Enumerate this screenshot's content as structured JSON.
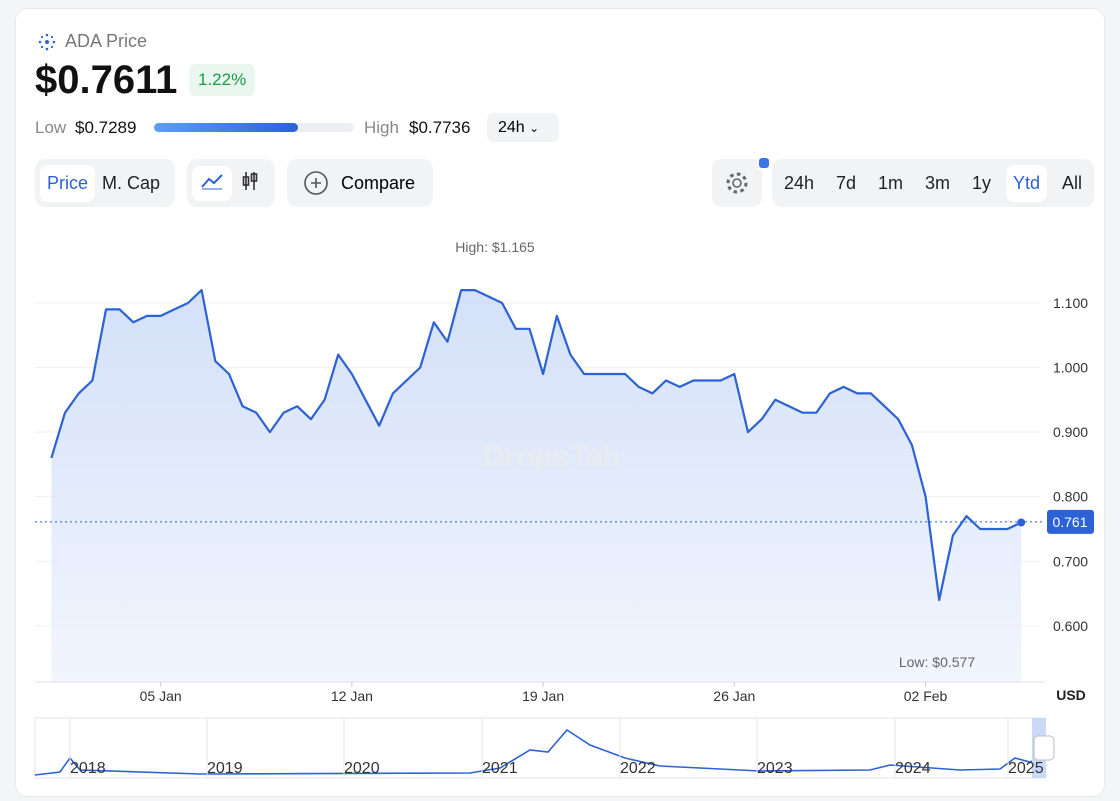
{
  "header": {
    "asset": "ADA Price",
    "price": "$0.7611",
    "change": "1.22%",
    "low_label": "Low",
    "low": "$0.7289",
    "high_label": "High",
    "high": "$0.7736",
    "range": "24h"
  },
  "toolbar": {
    "metrics": [
      "Price",
      "M. Cap"
    ],
    "compare": "Compare",
    "periods": [
      "24h",
      "7d",
      "1m",
      "3m",
      "1y",
      "Ytd",
      "All"
    ]
  },
  "chart_data": {
    "type": "line",
    "color": "#2c62d4",
    "values": [
      0.86,
      0.93,
      0.96,
      0.98,
      1.09,
      1.09,
      1.07,
      1.08,
      1.08,
      1.09,
      1.1,
      1.12,
      1.01,
      0.99,
      0.94,
      0.93,
      0.9,
      0.93,
      0.94,
      0.92,
      0.95,
      1.02,
      0.99,
      0.95,
      0.91,
      0.96,
      0.98,
      1.0,
      1.07,
      1.04,
      1.12,
      1.12,
      1.11,
      1.1,
      1.06,
      1.06,
      0.99,
      1.08,
      1.02,
      0.99,
      0.99,
      0.99,
      0.99,
      0.97,
      0.96,
      0.98,
      0.97,
      0.98,
      0.98,
      0.98,
      0.99,
      0.9,
      0.92,
      0.95,
      0.94,
      0.93,
      0.93,
      0.96,
      0.97,
      0.96,
      0.96,
      0.94,
      0.92,
      0.88,
      0.8,
      0.64,
      0.74,
      0.77,
      0.75,
      0.75,
      0.75,
      0.76
    ],
    "xlim": [
      -1.2,
      71.5
    ],
    "xticks": [
      {
        "value": 8,
        "label": "05 Jan"
      },
      {
        "value": 22,
        "label": "12 Jan"
      },
      {
        "value": 36,
        "label": "19 Jan"
      },
      {
        "value": 50,
        "label": "26 Jan"
      },
      {
        "value": 64,
        "label": "02 Feb"
      }
    ],
    "ylim": [
      0.513,
      1.213
    ],
    "yticks": [
      {
        "value": 0.6,
        "label": "0.600"
      },
      {
        "value": 0.7,
        "label": "0.700"
      },
      {
        "value": 0.8,
        "label": "0.800"
      },
      {
        "value": 0.9,
        "label": "0.900"
      },
      {
        "value": 1.0,
        "label": "1.000"
      },
      {
        "value": 1.1,
        "label": "1.100"
      }
    ],
    "grid": true,
    "current": {
      "value": 0.761,
      "label": "0.761"
    },
    "annotations": [
      "High: $1.165",
      "Low: $0.577"
    ],
    "unit": "USD",
    "watermark": "DropsTab"
  },
  "navigator": {
    "years": [
      "2018",
      "2019",
      "2020",
      "2021",
      "2022",
      "2023",
      "2024",
      "2025"
    ]
  }
}
